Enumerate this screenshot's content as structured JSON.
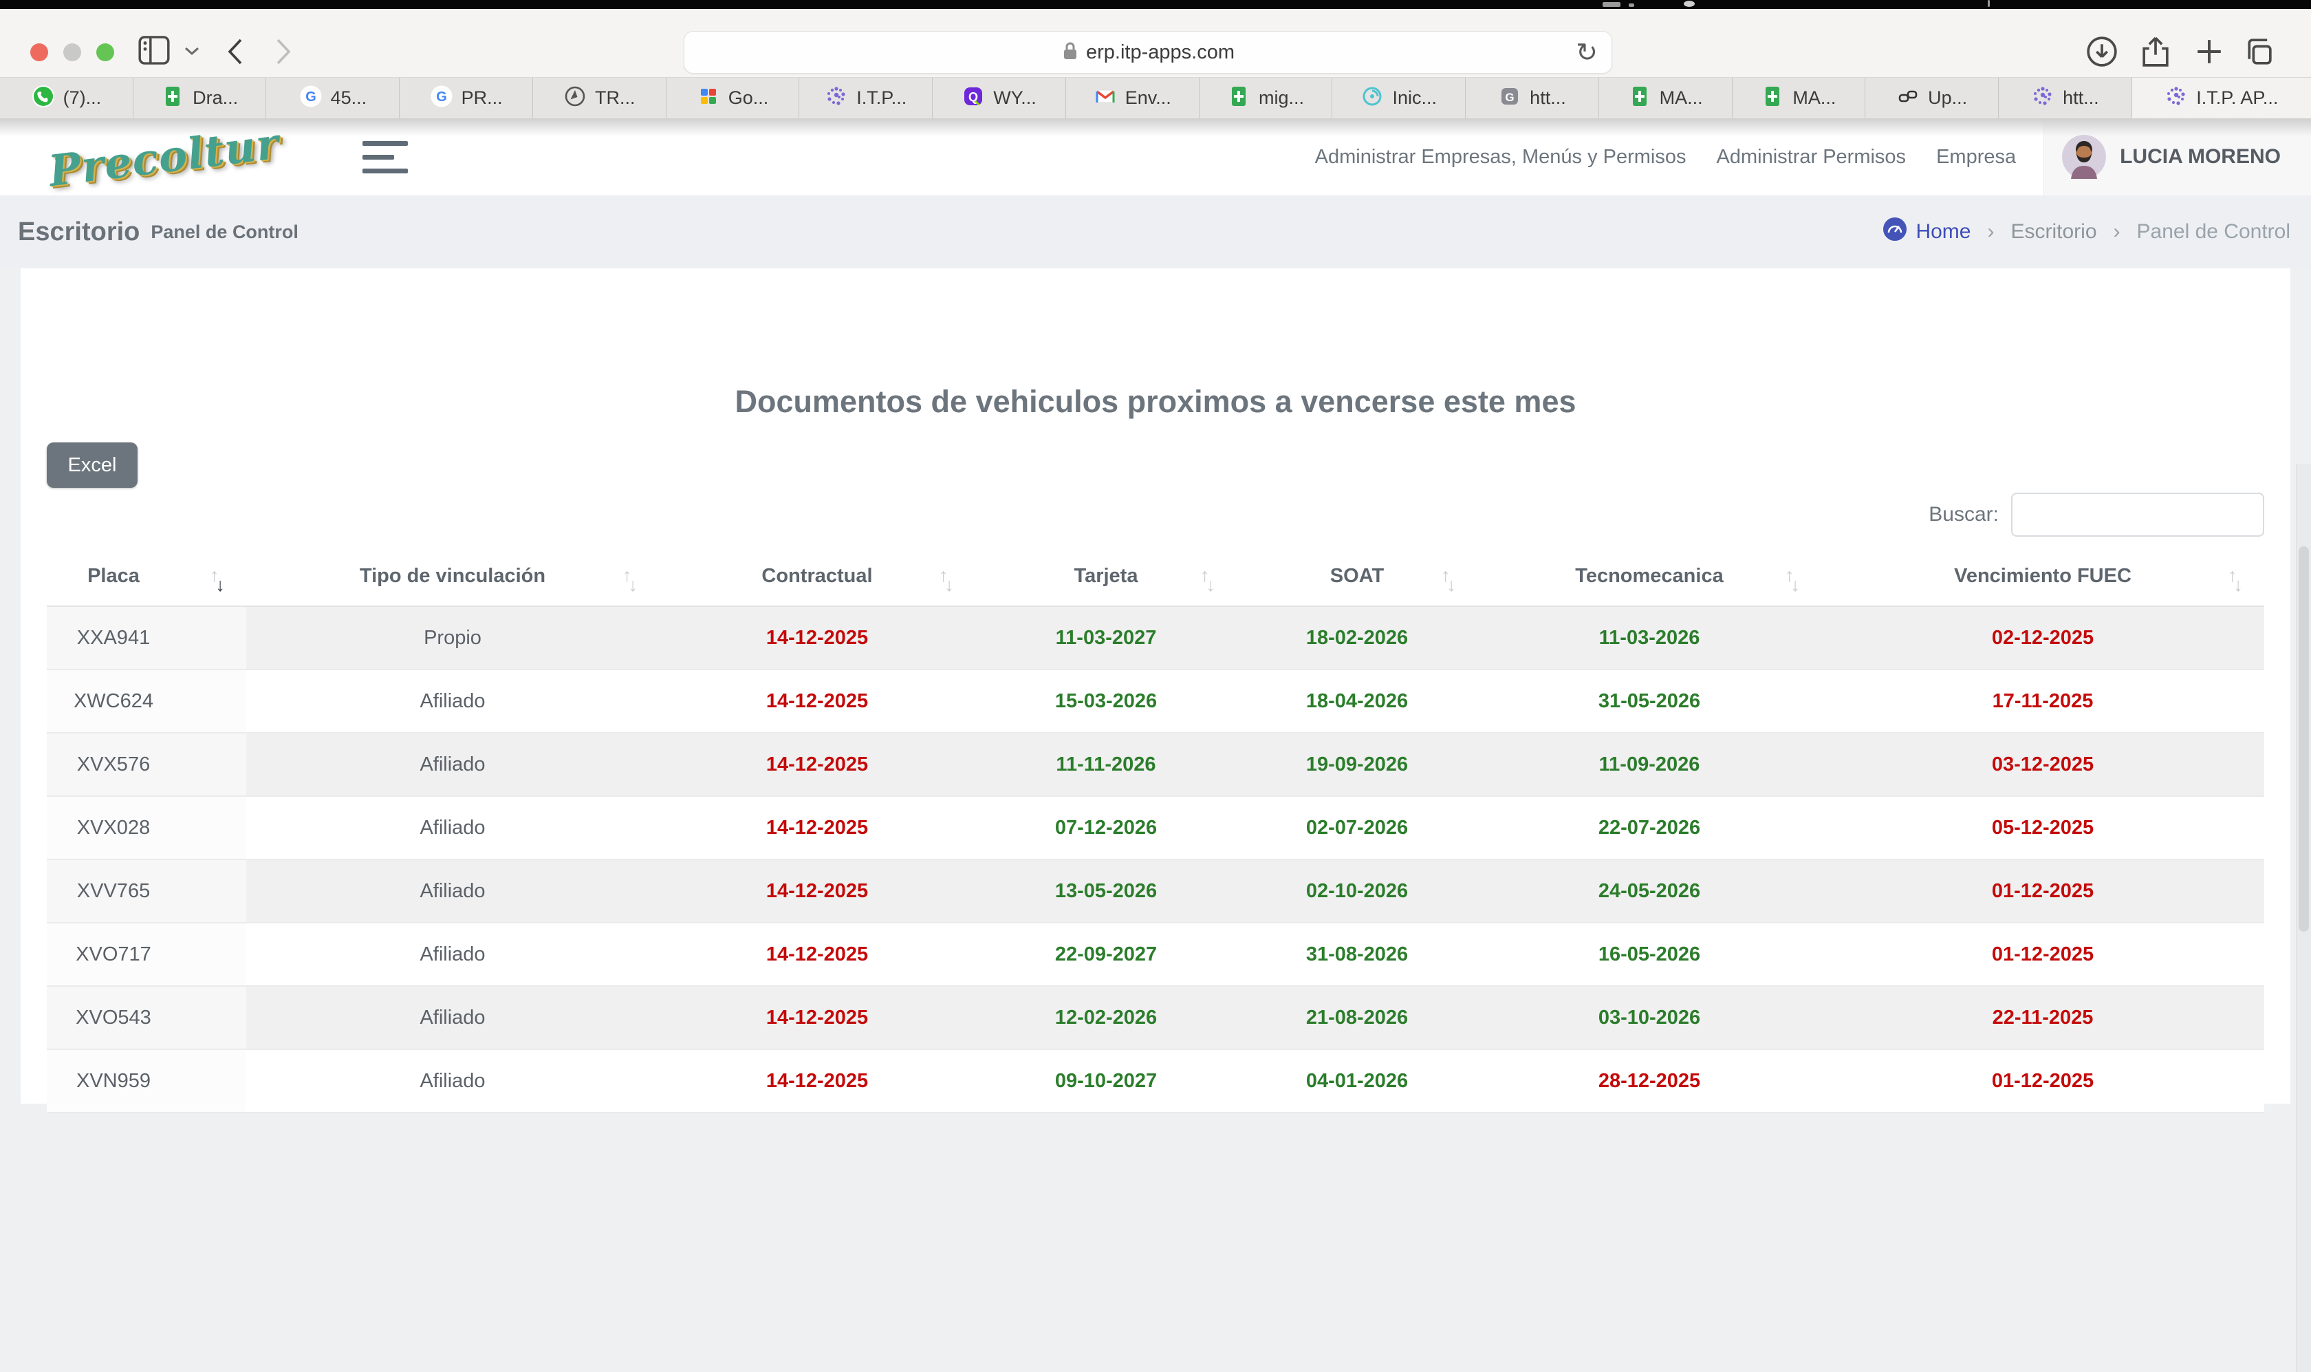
{
  "browser": {
    "url": "erp.itp-apps.com",
    "tabs": [
      {
        "icon": "whatsapp",
        "label": "(7)..."
      },
      {
        "icon": "sheets",
        "label": "Dra..."
      },
      {
        "icon": "google",
        "label": "45..."
      },
      {
        "icon": "google",
        "label": "PR..."
      },
      {
        "icon": "compass",
        "label": "TR..."
      },
      {
        "icon": "workspace",
        "label": "Go..."
      },
      {
        "icon": "itp",
        "label": "I.T.P..."
      },
      {
        "icon": "q-app",
        "label": "WY..."
      },
      {
        "icon": "gmail",
        "label": "Env..."
      },
      {
        "icon": "sheets",
        "label": "mig..."
      },
      {
        "icon": "swirl",
        "label": "Inic..."
      },
      {
        "icon": "g-gray",
        "label": "htt..."
      },
      {
        "icon": "sheets",
        "label": "MA..."
      },
      {
        "icon": "sheets",
        "label": "MA..."
      },
      {
        "icon": "link",
        "label": "Up..."
      },
      {
        "icon": "itp",
        "label": "htt..."
      },
      {
        "icon": "itp",
        "label": "I.T.P. AP...",
        "active": true
      }
    ]
  },
  "app": {
    "logo": "Precoltur",
    "nav": [
      "Administrar Empresas, Menús y Permisos",
      "Administrar Permisos",
      "Empresa"
    ],
    "user_name": "LUCIA MORENO"
  },
  "page": {
    "title": "Escritorio",
    "subtitle": "Panel de Control"
  },
  "breadcrumb": {
    "home": "Home",
    "level2": "Escritorio",
    "level3": "Panel de Control"
  },
  "content": {
    "title": "Documentos de vehiculos proximos a vencerse este mes",
    "excel_label": "Excel",
    "search_label": "Buscar:",
    "search_value": ""
  },
  "table": {
    "columns": [
      {
        "label": "Placa",
        "sort": "desc"
      },
      {
        "label": "Tipo de vinculación",
        "sort": "none"
      },
      {
        "label": "Contractual",
        "sort": "none"
      },
      {
        "label": "Tarjeta",
        "sort": "none"
      },
      {
        "label": "SOAT",
        "sort": "none"
      },
      {
        "label": "Tecnomecanica",
        "sort": "none"
      },
      {
        "label": "Vencimiento FUEC",
        "sort": "none"
      }
    ],
    "rows": [
      {
        "cells": [
          "XXA941",
          "Propio",
          "14-12-2025",
          "11-03-2027",
          "18-02-2026",
          "11-03-2026",
          "02-12-2025"
        ],
        "colors": [
          "muted",
          "muted",
          "red",
          "green",
          "green",
          "green",
          "red"
        ]
      },
      {
        "cells": [
          "XWC624",
          "Afiliado",
          "14-12-2025",
          "15-03-2026",
          "18-04-2026",
          "31-05-2026",
          "17-11-2025"
        ],
        "colors": [
          "muted",
          "muted",
          "red",
          "green",
          "green",
          "green",
          "red"
        ]
      },
      {
        "cells": [
          "XVX576",
          "Afiliado",
          "14-12-2025",
          "11-11-2026",
          "19-09-2026",
          "11-09-2026",
          "03-12-2025"
        ],
        "colors": [
          "muted",
          "muted",
          "red",
          "green",
          "green",
          "green",
          "red"
        ]
      },
      {
        "cells": [
          "XVX028",
          "Afiliado",
          "14-12-2025",
          "07-12-2026",
          "02-07-2026",
          "22-07-2026",
          "05-12-2025"
        ],
        "colors": [
          "muted",
          "muted",
          "red",
          "green",
          "green",
          "green",
          "red"
        ]
      },
      {
        "cells": [
          "XVV765",
          "Afiliado",
          "14-12-2025",
          "13-05-2026",
          "02-10-2026",
          "24-05-2026",
          "01-12-2025"
        ],
        "colors": [
          "muted",
          "muted",
          "red",
          "green",
          "green",
          "green",
          "red"
        ]
      },
      {
        "cells": [
          "XVO717",
          "Afiliado",
          "14-12-2025",
          "22-09-2027",
          "31-08-2026",
          "16-05-2026",
          "01-12-2025"
        ],
        "colors": [
          "muted",
          "muted",
          "red",
          "green",
          "green",
          "green",
          "red"
        ]
      },
      {
        "cells": [
          "XVO543",
          "Afiliado",
          "14-12-2025",
          "12-02-2026",
          "21-08-2026",
          "03-10-2026",
          "22-11-2025"
        ],
        "colors": [
          "muted",
          "muted",
          "red",
          "green",
          "green",
          "green",
          "red"
        ]
      },
      {
        "cells": [
          "XVN959",
          "Afiliado",
          "14-12-2025",
          "09-10-2027",
          "04-01-2026",
          "28-12-2025",
          "01-12-2025"
        ],
        "colors": [
          "muted",
          "muted",
          "red",
          "green",
          "green",
          "red",
          "red"
        ]
      }
    ]
  },
  "colors": {
    "accent_red": "#c40a0a",
    "accent_green": "#2b7d2b",
    "brand_teal": "#45a08e",
    "breadcrumb_blue": "#3d4eb8",
    "button_gray": "#6c757d"
  }
}
